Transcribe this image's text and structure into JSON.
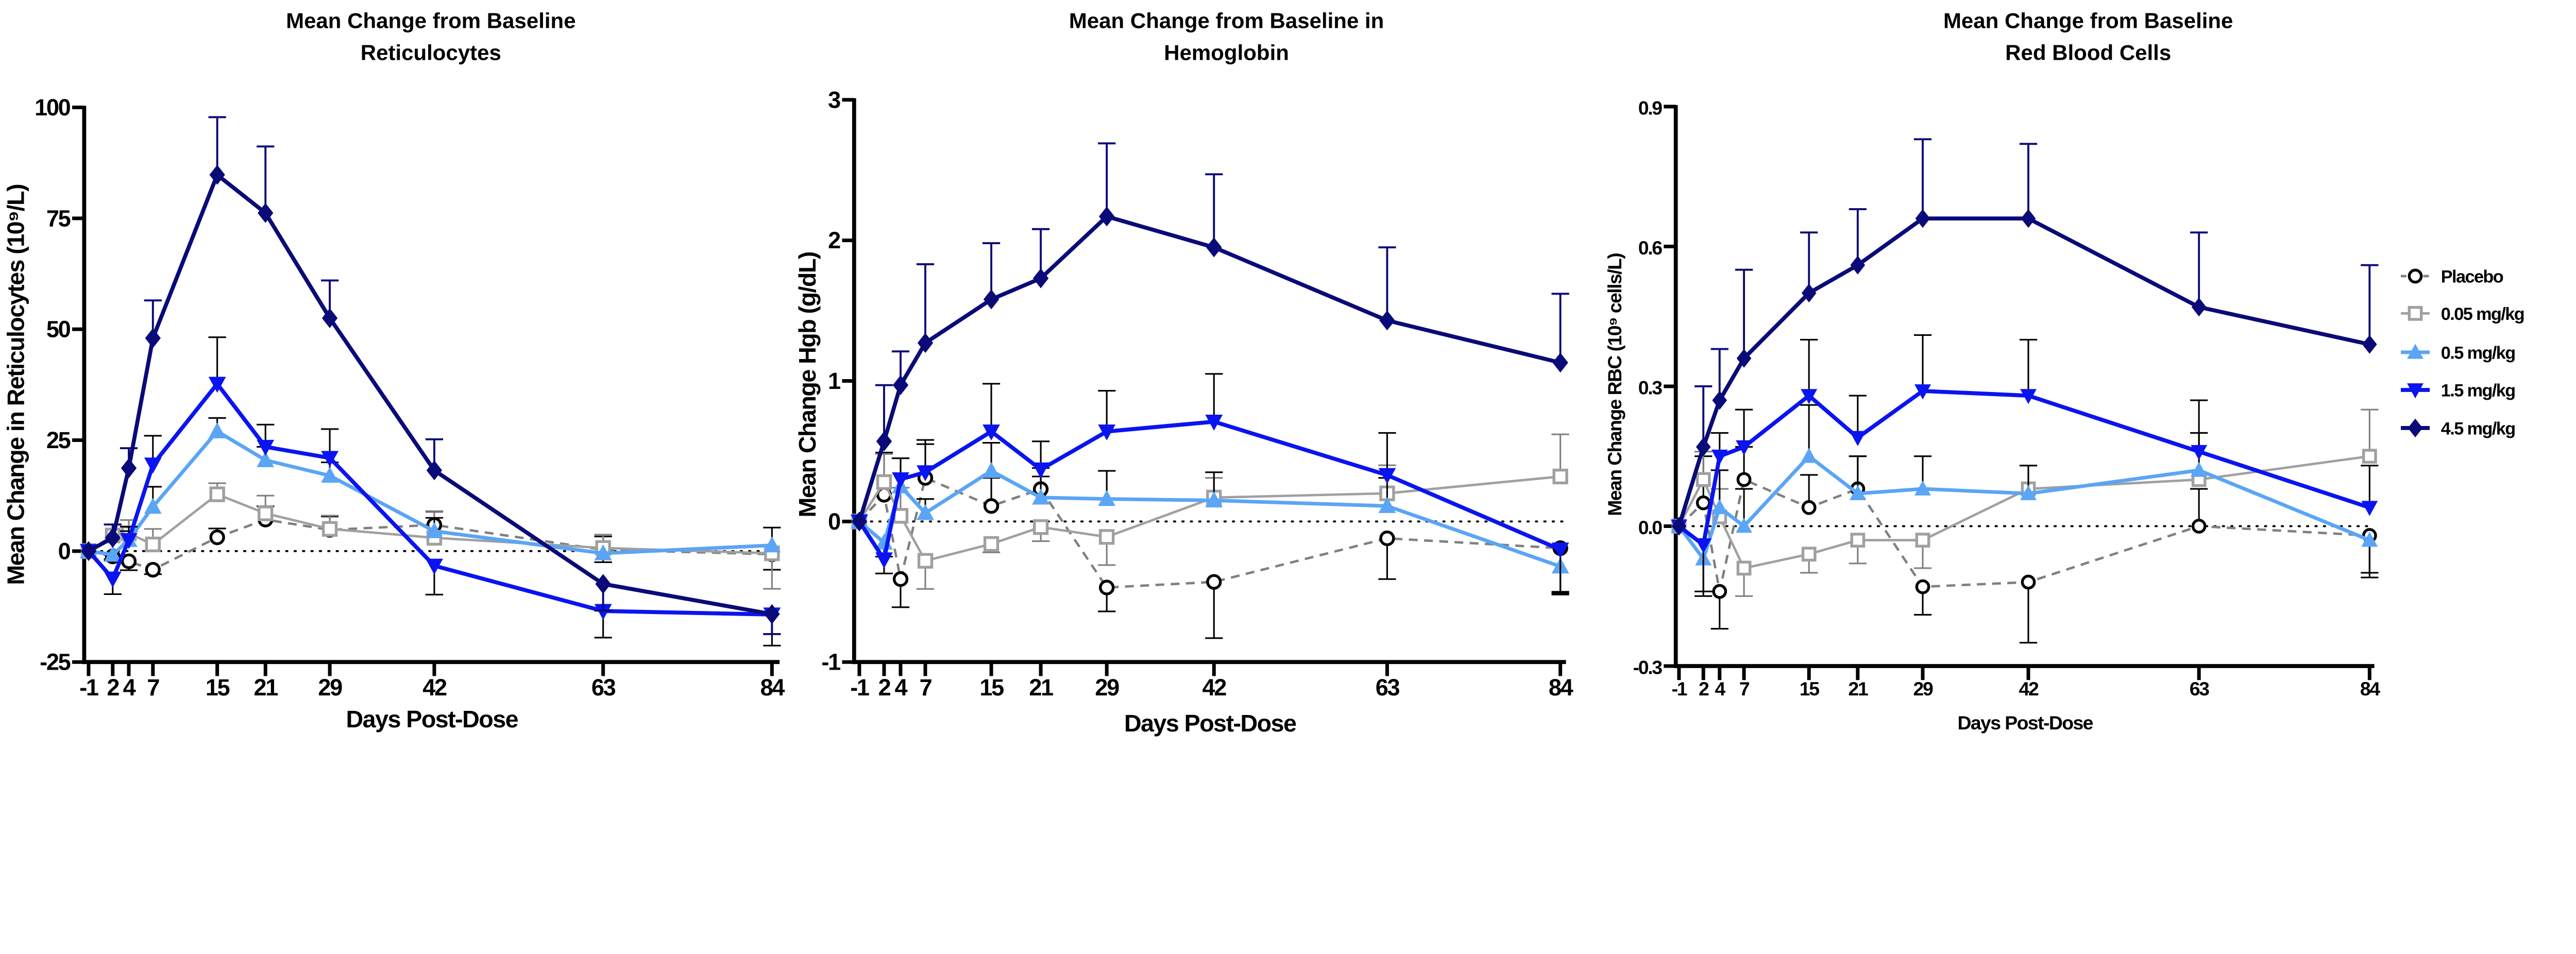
{
  "legend": {
    "placement": "right",
    "entries": [
      {
        "name": "Placebo",
        "color": "#808080",
        "marker": "circle-open",
        "dash": true
      },
      {
        "name": "0.05 mg/kg",
        "color": "#a0a0a0",
        "marker": "square-open",
        "dash": false
      },
      {
        "name": "0.5 mg/kg",
        "color": "#5aa5f5",
        "marker": "triangle-up",
        "dash": false
      },
      {
        "name": "1.5 mg/kg",
        "color": "#0a14f0",
        "marker": "triangle-down",
        "dash": false
      },
      {
        "name": "4.5 mg/kg",
        "color": "#0a0a78",
        "marker": "diamond",
        "dash": false
      }
    ]
  },
  "chart_data": [
    {
      "type": "line",
      "title": [
        "Mean Change from Baseline",
        "Reticulocytes"
      ],
      "xlabel": "Days Post-Dose",
      "ylabel": "Mean Change in Reticulocytes (10⁹/L)",
      "x": [
        -1,
        2,
        4,
        7,
        15,
        21,
        29,
        42,
        63,
        84
      ],
      "xtick_labels": [
        "-1",
        "2",
        "4",
        "7",
        "15",
        "21",
        "29",
        "42",
        "63",
        "84"
      ],
      "ylim": [
        -25,
        100
      ],
      "yticks": [
        100,
        75,
        50,
        25,
        0,
        -25
      ],
      "ytick_labels": [
        "100",
        "75",
        "50",
        "25",
        "0",
        "-25"
      ],
      "reference_line": 0,
      "series": [
        {
          "name": "Placebo",
          "values": [
            0,
            -1.2,
            -2.3,
            -4.2,
            3.1,
            7.1,
            4.8,
            5.9,
            0.3,
            -0.7
          ],
          "error": [
            0,
            1,
            2,
            1,
            2,
            3,
            3,
            3,
            3,
            3.5
          ]
        },
        {
          "name": "0.05 mg/kg",
          "values": [
            0,
            3.5,
            4,
            1.5,
            12.8,
            8.5,
            5,
            3,
            0.7,
            -0.5
          ],
          "error": [
            0,
            2.5,
            3,
            3.5,
            2.5,
            4,
            3,
            6,
            3,
            8
          ]
        },
        {
          "name": "0.5 mg/kg",
          "values": [
            0,
            -0.8,
            2.5,
            10,
            27,
            20.5,
            17,
            4.5,
            -0.5,
            1.3
          ],
          "error": [
            0,
            1,
            2,
            4.5,
            3,
            3,
            3,
            3,
            2,
            4
          ]
        },
        {
          "name": "1.5 mg/kg",
          "values": [
            0,
            -6.2,
            2.5,
            19.5,
            37.7,
            23.5,
            21,
            -3.3,
            -13.5,
            -14.3
          ],
          "error": [
            0,
            3.5,
            3,
            6.5,
            10.5,
            5,
            6.5,
            6.5,
            6,
            7
          ]
        },
        {
          "name": "4.5 mg/kg",
          "values": [
            0,
            3,
            18.7,
            48,
            84.8,
            76.2,
            52.5,
            18.2,
            -7.4,
            -14.2
          ],
          "error": [
            0,
            3,
            4.5,
            8.5,
            13,
            15,
            8.5,
            7,
            6,
            4.5
          ]
        }
      ]
    },
    {
      "type": "line",
      "title": [
        "Mean Change from Baseline in",
        "Hemoglobin"
      ],
      "xlabel": "Days Post-Dose",
      "ylabel": "Mean Change Hgb (g/dL)",
      "x": [
        -1,
        2,
        4,
        7,
        15,
        21,
        29,
        42,
        63,
        84
      ],
      "xtick_labels": [
        "-1",
        "2",
        "4",
        "7",
        "15",
        "21",
        "29",
        "42",
        "63",
        "84"
      ],
      "ylim": [
        -1,
        3
      ],
      "yticks": [
        3,
        2,
        1,
        0,
        -1
      ],
      "ytick_labels": [
        "3",
        "2",
        "1",
        "0",
        "-1"
      ],
      "reference_line": 0,
      "series": [
        {
          "name": "Placebo",
          "values": [
            0,
            0.19,
            -0.41,
            0.31,
            0.11,
            0.23,
            -0.47,
            -0.43,
            -0.12,
            -0.19
          ],
          "error": [
            0,
            0.3,
            0.2,
            0.27,
            0.2,
            0.15,
            0.17,
            0.4,
            0.29,
            0.32
          ]
        },
        {
          "name": "0.05 mg/kg",
          "values": [
            0,
            0.28,
            0.04,
            -0.28,
            -0.16,
            -0.04,
            -0.11,
            0.17,
            0.2,
            0.32
          ],
          "error": [
            0,
            0.2,
            0.2,
            0.2,
            0.06,
            0.1,
            0.2,
            0.14,
            0.2,
            0.3
          ]
        },
        {
          "name": "0.5 mg/kg",
          "values": [
            0,
            -0.15,
            0.25,
            0.06,
            0.36,
            0.17,
            0.16,
            0.15,
            0.11,
            -0.32
          ],
          "error": [
            0,
            0.1,
            0.2,
            0.1,
            0.2,
            0.15,
            0.2,
            0.2,
            0.2,
            0.2
          ]
        },
        {
          "name": "1.5 mg/kg",
          "values": [
            0,
            -0.27,
            0.3,
            0.35,
            0.64,
            0.37,
            0.64,
            0.71,
            0.33,
            -0.2
          ],
          "error": [
            0,
            0.1,
            0.15,
            0.2,
            0.34,
            0.2,
            0.29,
            0.34,
            0.3,
            0.3
          ]
        },
        {
          "name": "4.5 mg/kg",
          "values": [
            0,
            0.57,
            0.97,
            1.27,
            1.58,
            1.73,
            2.17,
            1.95,
            1.43,
            1.13
          ],
          "error": [
            0,
            0.4,
            0.24,
            0.56,
            0.4,
            0.35,
            0.52,
            0.52,
            0.52,
            0.49
          ]
        }
      ]
    },
    {
      "type": "line",
      "title": [
        "Mean Change from Baseline",
        "Red Blood Cells"
      ],
      "xlabel": "Days Post-Dose",
      "ylabel": "Mean Change RBC (10⁹ cells/L)",
      "x": [
        -1,
        2,
        4,
        7,
        15,
        21,
        29,
        42,
        63,
        84
      ],
      "xtick_labels": [
        "-1",
        "2",
        "4",
        "7",
        "15",
        "21",
        "29",
        "42",
        "63",
        "84"
      ],
      "ylim": [
        -0.3,
        0.9
      ],
      "yticks": [
        0.9,
        0.6,
        0.3,
        0.0,
        -0.3
      ],
      "ytick_labels": [
        "0.9",
        "0.6",
        "0.3",
        "0.0",
        "-0.3"
      ],
      "reference_line": 0,
      "series": [
        {
          "name": "Placebo",
          "values": [
            0,
            0.05,
            -0.14,
            0.1,
            0.04,
            0.08,
            -0.13,
            -0.12,
            0,
            -0.02
          ],
          "error": [
            0,
            0.1,
            0.08,
            0.07,
            0.07,
            0.07,
            0.06,
            0.13,
            0.08,
            0.08
          ]
        },
        {
          "name": "0.05 mg/kg",
          "values": [
            0,
            0.1,
            0.02,
            -0.09,
            -0.06,
            -0.03,
            -0.03,
            0.08,
            0.1,
            0.15
          ],
          "error": [
            0,
            0.06,
            0.06,
            0.06,
            0.04,
            0.05,
            0.06,
            0.05,
            0.1,
            0.1
          ]
        },
        {
          "name": "0.5 mg/kg",
          "values": [
            0,
            -0.07,
            0.04,
            0.0,
            0.15,
            0.07,
            0.08,
            0.07,
            0.12,
            -0.03
          ],
          "error": [
            0,
            0.08,
            0.08,
            0.08,
            0.11,
            0.08,
            0.07,
            0.06,
            0.08,
            0.08
          ]
        },
        {
          "name": "1.5 mg/kg",
          "values": [
            0,
            -0.04,
            0.15,
            0.17,
            0.28,
            0.19,
            0.29,
            0.28,
            0.16,
            0.04
          ],
          "error": [
            0,
            0.1,
            0.05,
            0.08,
            0.12,
            0.09,
            0.12,
            0.12,
            0.11,
            0.09
          ]
        },
        {
          "name": "4.5 mg/kg",
          "values": [
            0,
            0.17,
            0.27,
            0.36,
            0.5,
            0.56,
            0.66,
            0.66,
            0.47,
            0.39
          ],
          "error": [
            0,
            0.13,
            0.11,
            0.19,
            0.13,
            0.12,
            0.17,
            0.16,
            0.16,
            0.17
          ]
        }
      ]
    }
  ]
}
